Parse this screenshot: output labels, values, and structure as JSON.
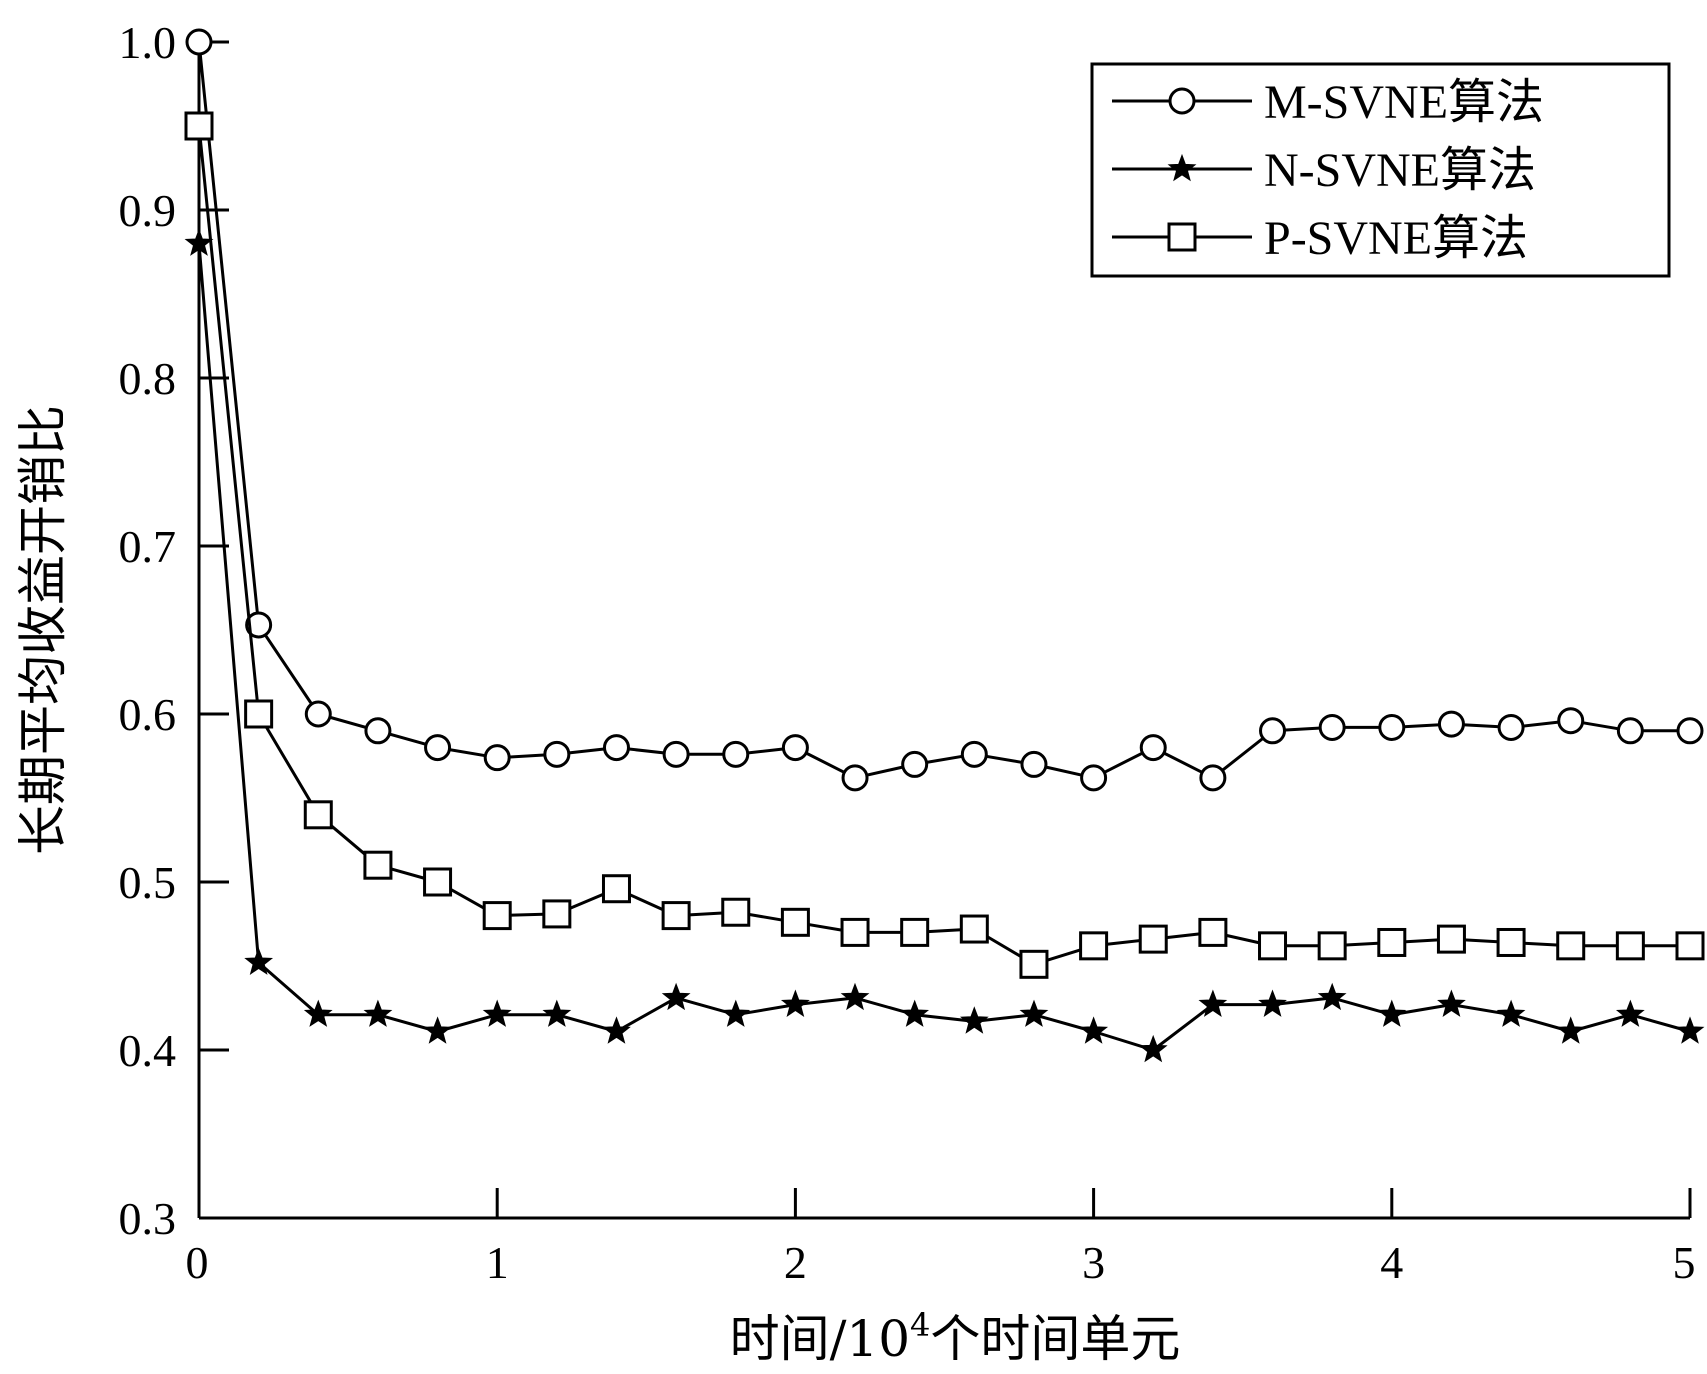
{
  "chart_data": {
    "type": "line",
    "title": "",
    "xlabel": "时间/10",
    "xlabel_superscript": "4",
    "xlabel_suffix": "个时间单元",
    "ylabel": "长期平均收益开销比",
    "xlim": [
      0,
      5
    ],
    "ylim": [
      0.3,
      1.0
    ],
    "xticks": [
      "0",
      "1",
      "2",
      "3",
      "4",
      "5"
    ],
    "yticks": [
      "0.3",
      "0.4",
      "0.5",
      "0.6",
      "0.7",
      "0.8",
      "0.9",
      "1.0"
    ],
    "grid": false,
    "legend_position": "top-right",
    "x": [
      0,
      0.2,
      0.4,
      0.6,
      0.8,
      1.0,
      1.2,
      1.4,
      1.6,
      1.8,
      2.0,
      2.2,
      2.4,
      2.6,
      2.8,
      3.0,
      3.2,
      3.4,
      3.6,
      3.8,
      4.0,
      4.2,
      4.4,
      4.6,
      4.8,
      5.0
    ],
    "series": [
      {
        "name": "M-SVNE算法",
        "marker": "circle",
        "values": [
          1.0,
          0.653,
          0.6,
          0.59,
          0.58,
          0.574,
          0.576,
          0.58,
          0.576,
          0.576,
          0.58,
          0.562,
          0.57,
          0.576,
          0.57,
          0.562,
          0.58,
          0.562,
          0.59,
          0.592,
          0.592,
          0.594,
          0.592,
          0.596,
          0.59,
          0.59
        ]
      },
      {
        "name": "N-SVNE算法",
        "marker": "star",
        "values": [
          0.88,
          0.452,
          0.421,
          0.421,
          0.411,
          0.421,
          0.421,
          0.411,
          0.431,
          0.421,
          0.427,
          0.431,
          0.421,
          0.417,
          0.421,
          0.411,
          0.4,
          0.427,
          0.427,
          0.431,
          0.421,
          0.427,
          0.421,
          0.411,
          0.421,
          0.411
        ]
      },
      {
        "name": "P-SVNE算法",
        "marker": "square",
        "values": [
          0.95,
          0.6,
          0.54,
          0.51,
          0.5,
          0.48,
          0.481,
          0.496,
          0.48,
          0.482,
          0.476,
          0.47,
          0.47,
          0.472,
          0.451,
          0.462,
          0.466,
          0.47,
          0.462,
          0.462,
          0.464,
          0.466,
          0.464,
          0.462,
          0.462,
          0.462
        ]
      }
    ]
  }
}
